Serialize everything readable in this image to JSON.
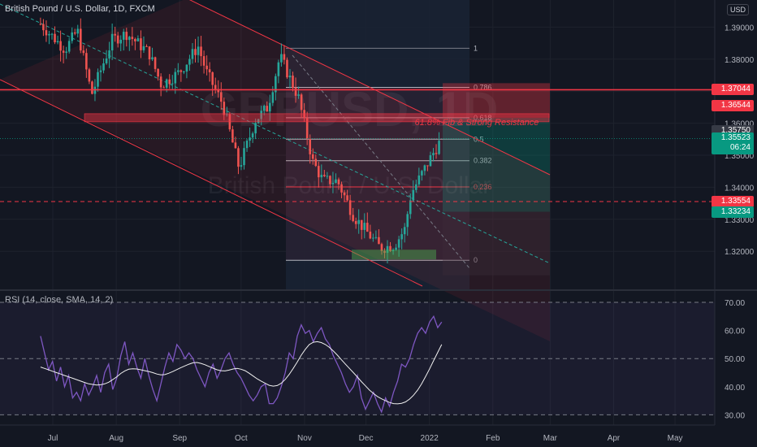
{
  "header": {
    "title": "British Pound / U.S. Dollar, 1D, FXCM",
    "currency_button": "USD",
    "watermark_symbol": "GBPUSD, 1D",
    "watermark_name": "British Pound / U.S. Dollar"
  },
  "rsi_panel": {
    "title": "RSI (14, close, SMA, 14, 2)"
  },
  "annotation": {
    "text": "61.8% Fib  & Strong Resistance"
  },
  "price_tags": [
    {
      "label": "1.37044",
      "price": 1.37044,
      "color": "#f23645"
    },
    {
      "label": "1.36544",
      "price": 1.36544,
      "color": "#f23645"
    },
    {
      "label": "1.35750",
      "price": 1.3575,
      "color": "#363a45"
    },
    {
      "label": "1.35523",
      "sub": "06:24",
      "price": 1.35523,
      "color": "#089981"
    },
    {
      "label": "1.33554",
      "price": 1.33554,
      "color": "#f23645"
    },
    {
      "label": "1.33234",
      "price": 1.33234,
      "color": "#089981"
    }
  ],
  "colors": {
    "up": "#26a69a",
    "down": "#ef5350",
    "rsi": "#7e57c2",
    "rsi_ma": "#f0f0f0",
    "channel": "#f23645"
  },
  "chart_data": [
    {
      "type": "candlestick",
      "title": "British Pound / U.S. Dollar, 1D, FXCM",
      "y_ticks": [
        "1.39000",
        "1.38000",
        "1.37000",
        "1.36000",
        "1.35000",
        "1.34000",
        "1.33000",
        "1.32000"
      ],
      "y_tick_values": [
        1.39,
        1.38,
        1.37,
        1.36,
        1.35,
        1.34,
        1.33,
        1.32
      ],
      "ylim": [
        1.3125,
        1.3935
      ],
      "x_ticks": [
        "Jul",
        "Aug",
        "Sep",
        "Oct",
        "Nov",
        "Dec",
        "2022",
        "Feb",
        "Mar",
        "Apr",
        "May"
      ],
      "grid": true,
      "close_path": [
        [
          "2021-06-25",
          1.391
        ],
        [
          "2021-07-07",
          1.383
        ],
        [
          "2021-07-13",
          1.389
        ],
        [
          "2021-07-20",
          1.369
        ],
        [
          "2021-07-30",
          1.386
        ],
        [
          "2021-08-06",
          1.388
        ],
        [
          "2021-08-17",
          1.382
        ],
        [
          "2021-08-23",
          1.372
        ],
        [
          "2021-09-01",
          1.376
        ],
        [
          "2021-09-10",
          1.384
        ],
        [
          "2021-09-14",
          1.376
        ],
        [
          "2021-09-22",
          1.366
        ],
        [
          "2021-09-30",
          1.346
        ],
        [
          "2021-10-08",
          1.361
        ],
        [
          "2021-10-14",
          1.365
        ],
        [
          "2021-10-20",
          1.381
        ],
        [
          "2021-10-29",
          1.368
        ],
        [
          "2021-11-05",
          1.348
        ],
        [
          "2021-11-10",
          1.342
        ],
        [
          "2021-11-17",
          1.342
        ],
        [
          "2021-11-25",
          1.331
        ],
        [
          "2021-12-08",
          1.321
        ],
        [
          "2021-12-15",
          1.322
        ],
        [
          "2021-12-20",
          1.327
        ],
        [
          "2021-12-23",
          1.338
        ],
        [
          "2021-12-29",
          1.345
        ],
        [
          "2022-01-04",
          1.352
        ],
        [
          "2022-01-07",
          1.355
        ]
      ],
      "fibonacci": {
        "levels": [
          "1",
          "0.786",
          "0.618",
          "0.5",
          "0.382",
          "0.236",
          "0"
        ],
        "level_values": [
          1.3834,
          1.3712,
          1.3617,
          1.355,
          1.3483,
          1.3401,
          1.3172
        ]
      },
      "horizontal_lines": [
        1.37044,
        1.33554
      ]
    },
    {
      "type": "line",
      "title": "RSI (14, close, SMA, 14, 2)",
      "y_ticks": [
        "70.00",
        "60.00",
        "50.00",
        "40.00",
        "30.00"
      ],
      "y_tick_values": [
        70,
        60,
        50,
        40,
        30
      ],
      "ylim": [
        28,
        72
      ],
      "series": [
        {
          "values": [
            58,
            52,
            46,
            49,
            42,
            47,
            40,
            44,
            36,
            38,
            35,
            41,
            37,
            40,
            44,
            38,
            45,
            48,
            39,
            43,
            51,
            56,
            48,
            52,
            47,
            43,
            50,
            44,
            39,
            35,
            41,
            47,
            52,
            49,
            55,
            53,
            50,
            52,
            50,
            46,
            43,
            40,
            45,
            48,
            43,
            46,
            50,
            52,
            48,
            45,
            43,
            40,
            37,
            35,
            37,
            40,
            41,
            34,
            34,
            36,
            40,
            45,
            52,
            50,
            58,
            62,
            59,
            60,
            56,
            59,
            61,
            57,
            55,
            51,
            48,
            45,
            41,
            38,
            40,
            44,
            36,
            32,
            35,
            38,
            34,
            31,
            36,
            33,
            38,
            42,
            48,
            47,
            50,
            55,
            59,
            61,
            59,
            63,
            65,
            61,
            63
          ]
        },
        {
          "values": [
            47,
            46.5,
            46,
            45.5,
            45,
            44.5,
            44,
            43.5,
            43,
            42.5,
            42,
            41.5,
            41,
            40.8,
            40.6,
            40.7,
            41,
            41.6,
            42.5,
            43.5,
            44.7,
            45.6,
            46.2,
            46.4,
            46.3,
            46,
            45.7,
            45.4,
            45,
            44.5,
            44.2,
            44.3,
            44.8,
            45.4,
            46.1,
            46.8,
            47.4,
            48,
            48.5,
            48.6,
            48.3,
            47.8,
            47.2,
            46.6,
            46,
            45.7,
            45.6,
            45.9,
            46.3,
            46.5,
            46.2,
            45.7,
            44.8,
            43.8,
            42.8,
            42,
            41.2,
            40.5,
            40.2,
            40.4,
            41.2,
            42.6,
            44.4,
            46.5,
            48.8,
            51.2,
            53.3,
            55,
            55.8,
            56,
            55.7,
            55,
            54,
            52.7,
            51.2,
            49.6,
            48,
            46.5,
            45,
            43.4,
            41.8,
            40.3,
            38.8,
            37.6,
            36.5,
            35.7,
            35,
            34.4,
            34,
            33.9,
            34.1,
            34.6,
            35.6,
            37,
            38.8,
            41,
            43.6,
            46.4,
            49.3,
            52.2,
            55
          ]
        }
      ]
    }
  ]
}
